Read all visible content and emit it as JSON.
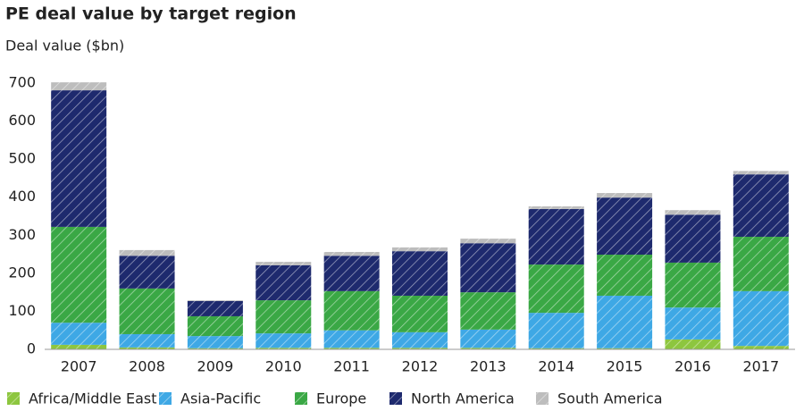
{
  "chart_data": {
    "type": "stacked-bar",
    "title": "PE deal value by target region",
    "y_label": "Deal value ($bn)",
    "categories": [
      "2007",
      "2008",
      "2009",
      "2010",
      "2011",
      "2012",
      "2013",
      "2014",
      "2015",
      "2016",
      "2017"
    ],
    "series": [
      {
        "name": "Africa/Middle East",
        "color": "#8dc63f",
        "values": [
          12,
          5,
          3,
          4,
          4,
          4,
          4,
          3,
          3,
          26,
          9
        ]
      },
      {
        "name": "Asia-Pacific",
        "color": "#3ea8e5",
        "values": [
          58,
          35,
          32,
          38,
          46,
          41,
          48,
          93,
          138,
          84,
          144
        ]
      },
      {
        "name": "Europe",
        "color": "#3aa845",
        "values": [
          252,
          120,
          52,
          87,
          103,
          96,
          98,
          127,
          108,
          118,
          143
        ]
      },
      {
        "name": "North America",
        "color": "#1e2a6e",
        "values": [
          359,
          86,
          40,
          92,
          93,
          117,
          129,
          146,
          150,
          126,
          164
        ]
      },
      {
        "name": "South America",
        "color": "#bdbdbd",
        "values": [
          21,
          15,
          2,
          9,
          10,
          10,
          12,
          7,
          12,
          12,
          9
        ]
      }
    ],
    "ylim": [
      0,
      700
    ],
    "yticks": [
      0,
      100,
      200,
      300,
      400,
      500,
      600,
      700
    ],
    "grid": false,
    "legend": "bottom"
  }
}
